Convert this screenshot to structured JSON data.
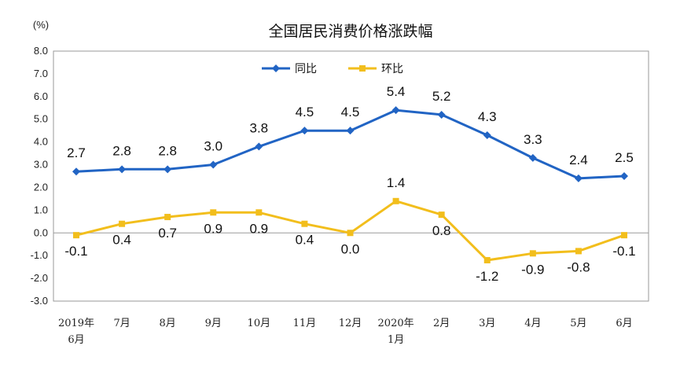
{
  "chart_data": {
    "type": "line",
    "title": "全国居民消费价格涨跌幅",
    "unit_label": "(%)",
    "categories": [
      [
        "2019年",
        "6月"
      ],
      [
        "7月"
      ],
      [
        "8月"
      ],
      [
        "9月"
      ],
      [
        "10月"
      ],
      [
        "11月"
      ],
      [
        "12月"
      ],
      [
        "2020年",
        "1月"
      ],
      [
        "2月"
      ],
      [
        "3月"
      ],
      [
        "4月"
      ],
      [
        "5月"
      ],
      [
        "6月"
      ]
    ],
    "series": [
      {
        "name": "同比",
        "color": "#2164c4",
        "values": [
          2.7,
          2.8,
          2.8,
          3.0,
          3.8,
          4.5,
          4.5,
          5.4,
          5.2,
          4.3,
          3.3,
          2.4,
          2.5
        ],
        "labels": [
          "2.7",
          "2.8",
          "2.8",
          "3.0",
          "3.8",
          "4.5",
          "4.5",
          "5.4",
          "5.2",
          "4.3",
          "3.3",
          "2.4",
          "2.5"
        ]
      },
      {
        "name": "环比",
        "color": "#f2be1c",
        "values": [
          -0.1,
          0.4,
          0.7,
          0.9,
          0.9,
          0.4,
          0.0,
          1.4,
          0.8,
          -1.2,
          -0.9,
          -0.8,
          -0.1
        ],
        "labels": [
          "-0.1",
          "0.4",
          "0.7",
          "0.9",
          "0.9",
          "0.4",
          "0.0",
          "1.4",
          "0.8",
          "-1.2",
          "-0.9",
          "-0.8",
          "-0.1"
        ]
      }
    ],
    "ylim": [
      -3.0,
      8.0
    ],
    "yticks": [
      "8.0",
      "7.0",
      "6.0",
      "5.0",
      "4.0",
      "3.0",
      "2.0",
      "1.0",
      "0.0",
      "-1.0",
      "-2.0",
      "-3.0"
    ],
    "grid": false,
    "legend_position": "top-center"
  }
}
